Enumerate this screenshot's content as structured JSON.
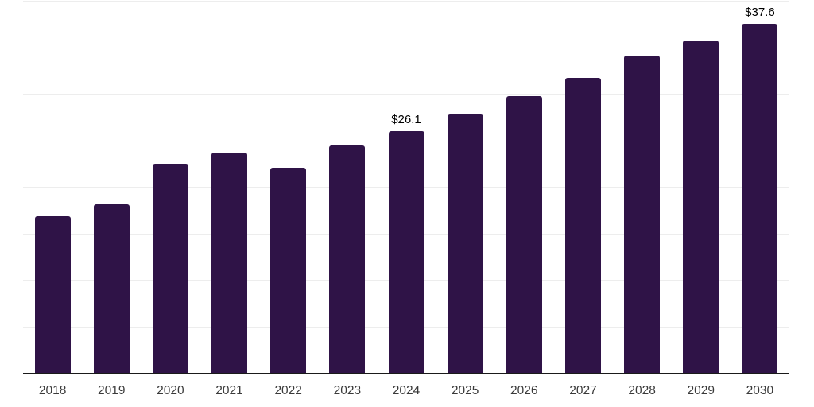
{
  "chart_data": {
    "type": "bar",
    "title": "",
    "xlabel": "",
    "ylabel": "",
    "categories": [
      "2018",
      "2019",
      "2020",
      "2021",
      "2022",
      "2023",
      "2024",
      "2025",
      "2026",
      "2027",
      "2028",
      "2029",
      "2030"
    ],
    "values": [
      16.9,
      18.2,
      22.6,
      23.8,
      22.1,
      24.5,
      26.1,
      27.9,
      29.8,
      31.8,
      34.2,
      35.8,
      37.6
    ],
    "data_labels": {
      "2024": "$26.1",
      "2030": "$37.6"
    },
    "ylim": [
      0,
      40
    ],
    "grid_step": 5,
    "grid": "horizontal",
    "legend": "none",
    "colors": {
      "bar": "#2f1347",
      "gridline": "#ededed",
      "axis_line": "#1a1a1a",
      "value_label": "#000000",
      "tick_label": "#3a3a3a",
      "background": "#ffffff"
    }
  }
}
